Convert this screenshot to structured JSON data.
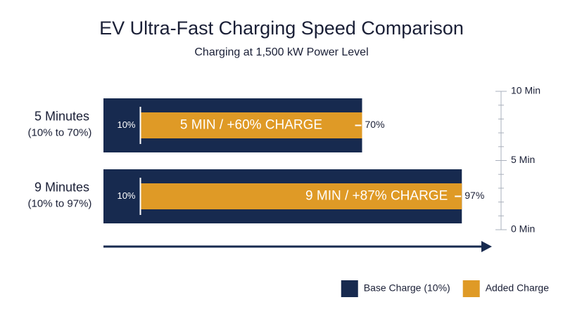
{
  "chart_data": {
    "type": "bar",
    "orientation": "horizontal",
    "title": "EV Ultra-Fast Charging Speed Comparison",
    "subtitle": "Charging at 1,500 kW Power Level",
    "categories": [
      "5 Minutes",
      "9 Minutes"
    ],
    "category_sublabels": [
      "(10% to 70%)",
      "(10% to 97%)"
    ],
    "series": [
      {
        "name": "Base Charge (10%)",
        "color": "#172a4f",
        "values": [
          10,
          10
        ],
        "value_labels": [
          "10%",
          "10%"
        ]
      },
      {
        "name": "Added Charge",
        "color": "#df9a26",
        "values": [
          60,
          87
        ]
      }
    ],
    "bar_labels": [
      "5 MIN / +60% CHARGE",
      "9 MIN / +87% CHARGE"
    ],
    "totals": [
      70,
      97
    ],
    "total_labels": [
      "70%",
      "97%"
    ],
    "xlim": [
      0,
      100
    ],
    "y2lim": [
      0,
      10
    ],
    "y2ticks": [
      {
        "value": 0,
        "label": "0 Min"
      },
      {
        "value": 5,
        "label": "5 Min"
      },
      {
        "value": 10,
        "label": "10 Min"
      }
    ],
    "y2minor_ticks": [
      1,
      2,
      3,
      4,
      6,
      7,
      8,
      9
    ],
    "legend": "bottom-right"
  }
}
